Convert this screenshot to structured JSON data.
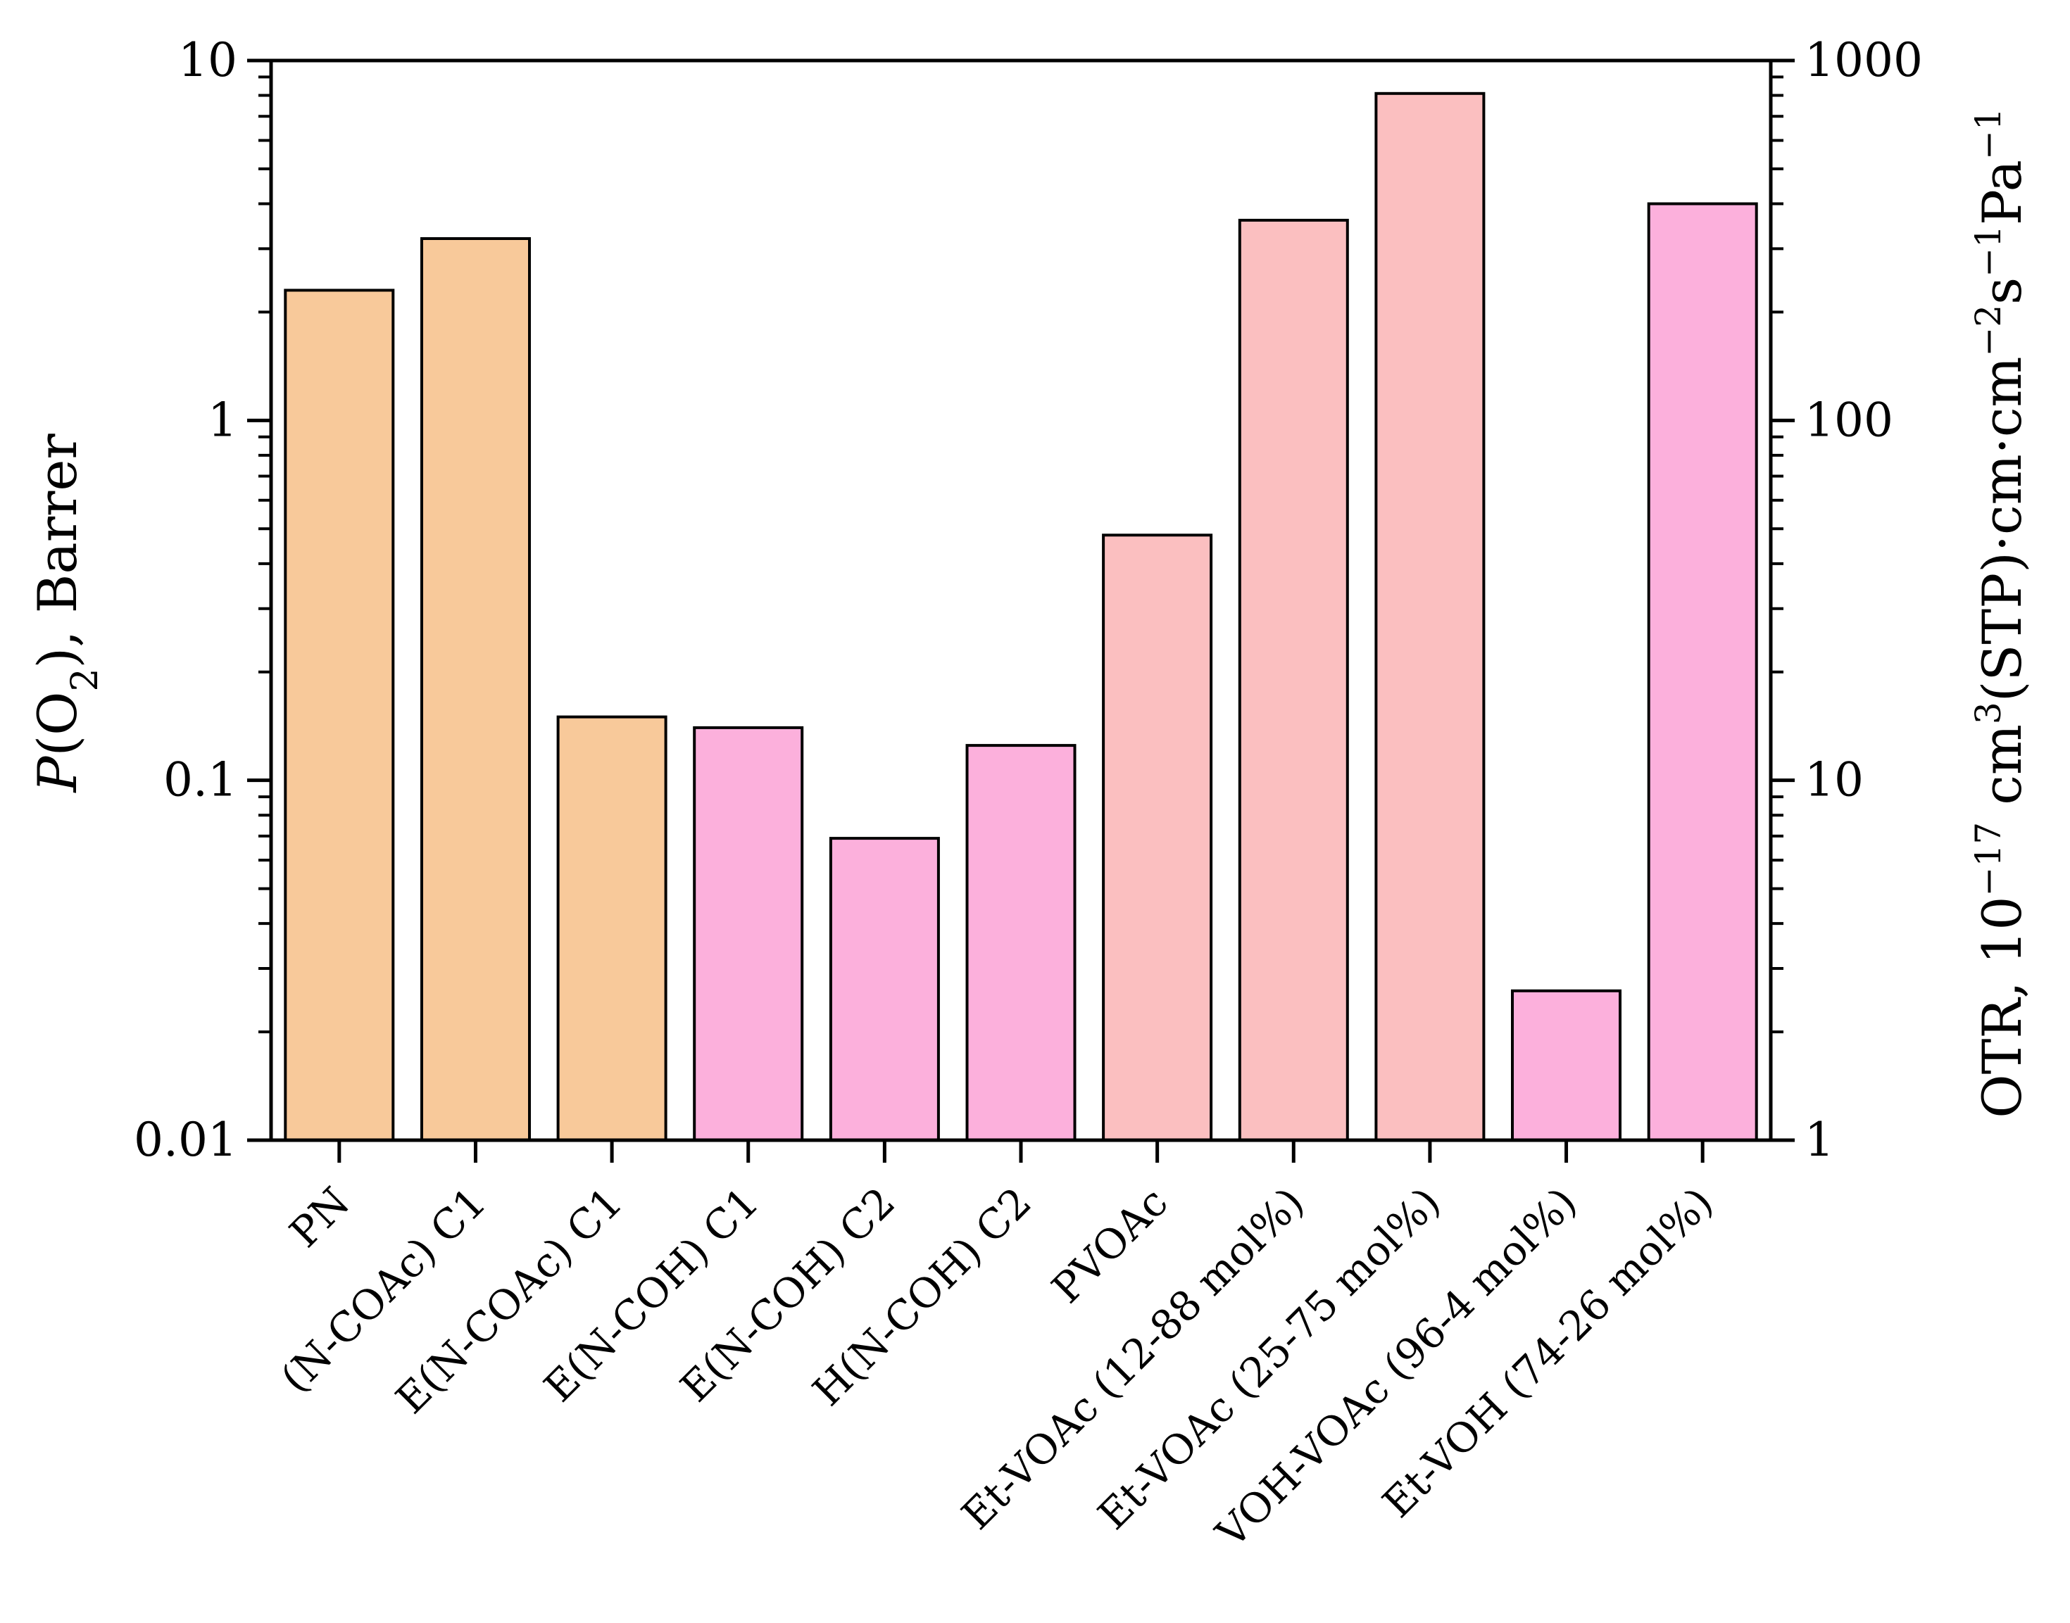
{
  "chart_data": {
    "type": "bar",
    "scale": "log",
    "categories": [
      "PN",
      "(N-COAc) C1",
      "E(N-COAc) C1",
      "E(N-COH) C1",
      "E(N-COH) C2",
      "H(N-COH) C2",
      "PVOAc",
      "Et-VOAc (12-88 mol%)",
      "Et-VOAc (25-75 mol%)",
      "VOH-VOAc (96-4 mol%)",
      "Et-VOH (74-26 mol%)"
    ],
    "values": [
      2.3,
      3.2,
      0.15,
      0.14,
      0.069,
      0.125,
      0.48,
      3.6,
      8.1,
      0.026,
      4.0
    ],
    "bar_colors": [
      "#f8c99a",
      "#f8c99a",
      "#f8c99a",
      "#fcb0dc",
      "#fcb0dc",
      "#fcb0dc",
      "#fbbfc0",
      "#fbbfc0",
      "#fbbfc0",
      "#fcb0dc",
      "#fcb0dc"
    ],
    "left_axis": {
      "title_italic": "P",
      "title_pre": "(O",
      "title_sub": "2",
      "title_post": "), Barrer",
      "ylim": [
        0.01,
        10
      ],
      "ticks": [
        0.01,
        0.1,
        1,
        10
      ],
      "tick_labels": [
        "0.01",
        "0.1",
        "1",
        "10"
      ]
    },
    "right_axis": {
      "title_a": "OTR, 10",
      "title_sup_a": "−17",
      "title_b": " cm",
      "title_sup_b": "3",
      "title_c": "(STP)·cm·cm",
      "title_sup_c": "−2",
      "title_d": "s",
      "title_sup_d": "−1",
      "title_e": "Pa",
      "title_sup_e": "−1",
      "ylim": [
        1,
        1000
      ],
      "ticks": [
        1,
        10,
        100,
        1000
      ],
      "tick_labels": [
        "1",
        "10",
        "100",
        "1000"
      ]
    },
    "xlabel": "",
    "grid": false,
    "legend": "none"
  }
}
